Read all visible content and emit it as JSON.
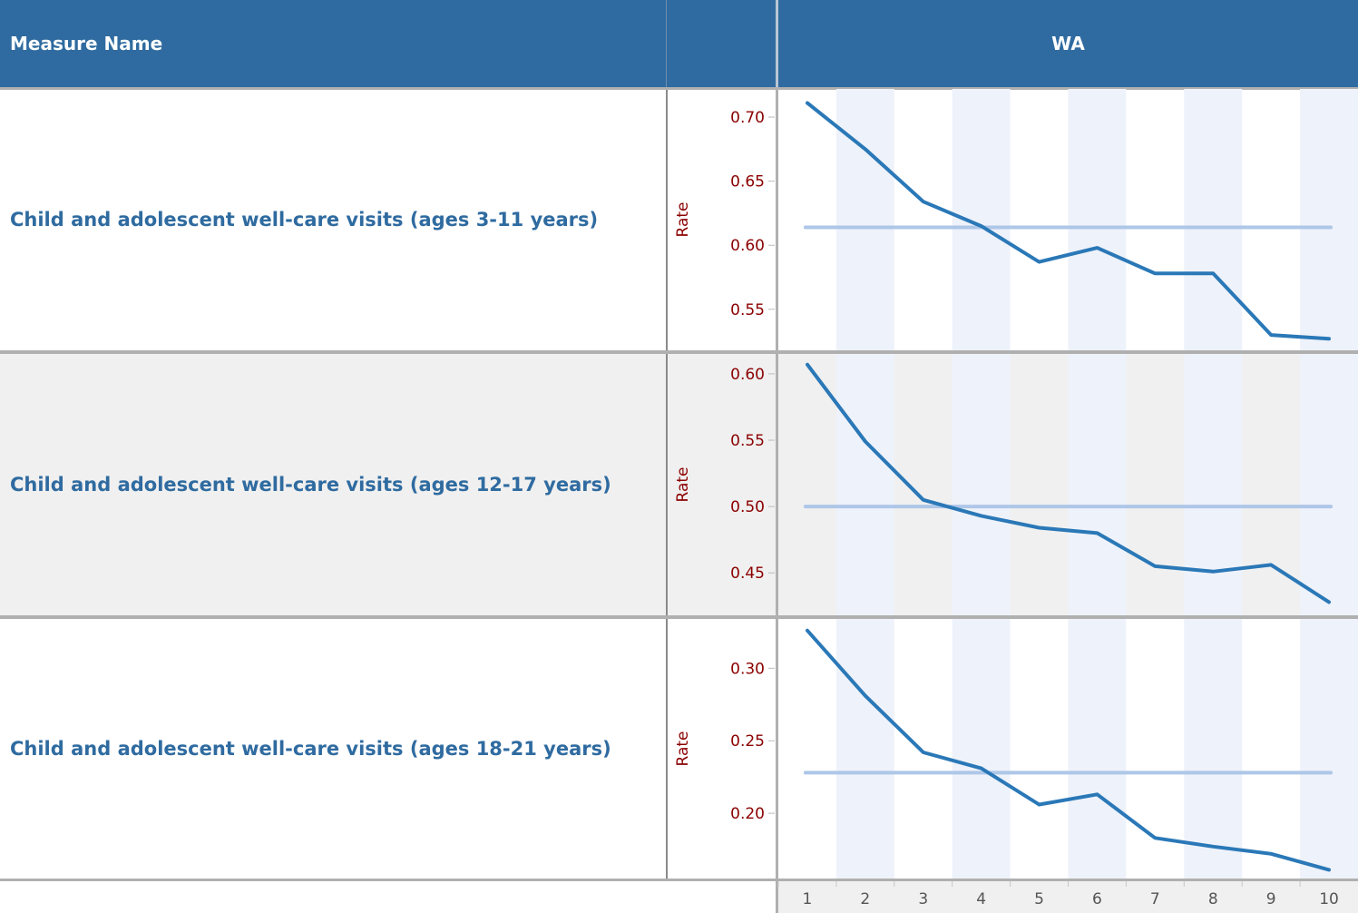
{
  "header": {
    "measure_name_label": "Measure Name",
    "state_label": "WA"
  },
  "colors": {
    "header_bg": "#2f6ba0",
    "line": "#2a78b7",
    "reference_line": "#aec7e8",
    "band": "#eef2fa",
    "tick_text": "#8b0000",
    "label_text": "#2f6ba0"
  },
  "chart_data": [
    {
      "type": "line",
      "row_label": "Child and adolescent well-care visits (ages 3-11 years)",
      "ylabel": "Rate",
      "x": [
        1,
        2,
        3,
        4,
        5,
        6,
        7,
        8,
        9,
        10
      ],
      "values": [
        0.711,
        0.675,
        0.634,
        0.615,
        0.587,
        0.598,
        0.578,
        0.578,
        0.53,
        0.527
      ],
      "reference": 0.614,
      "yticks": [
        0.55,
        0.6,
        0.65,
        0.7
      ],
      "ylim": [
        0.518,
        0.722
      ]
    },
    {
      "type": "line",
      "row_label": "Child and adolescent well-care visits (ages 12-17 years)",
      "ylabel": "Rate",
      "x": [
        1,
        2,
        3,
        4,
        5,
        6,
        7,
        8,
        9,
        10
      ],
      "values": [
        0.607,
        0.549,
        0.505,
        0.493,
        0.484,
        0.48,
        0.455,
        0.451,
        0.456,
        0.428
      ],
      "reference": 0.5,
      "yticks": [
        0.45,
        0.5,
        0.55,
        0.6
      ],
      "ylim": [
        0.418,
        0.615
      ]
    },
    {
      "type": "line",
      "row_label": "Child and adolescent well-care visits (ages 18-21 years)",
      "ylabel": "Rate",
      "x": [
        1,
        2,
        3,
        4,
        5,
        6,
        7,
        8,
        9,
        10
      ],
      "values": [
        0.326,
        0.281,
        0.242,
        0.231,
        0.206,
        0.213,
        0.183,
        0.177,
        0.172,
        0.161
      ],
      "reference": 0.228,
      "yticks": [
        0.2,
        0.25,
        0.3
      ],
      "ylim": [
        0.155,
        0.334
      ]
    }
  ],
  "x_axis": {
    "ticks": [
      "1",
      "2",
      "3",
      "4",
      "5",
      "6",
      "7",
      "8",
      "9",
      "10"
    ]
  }
}
